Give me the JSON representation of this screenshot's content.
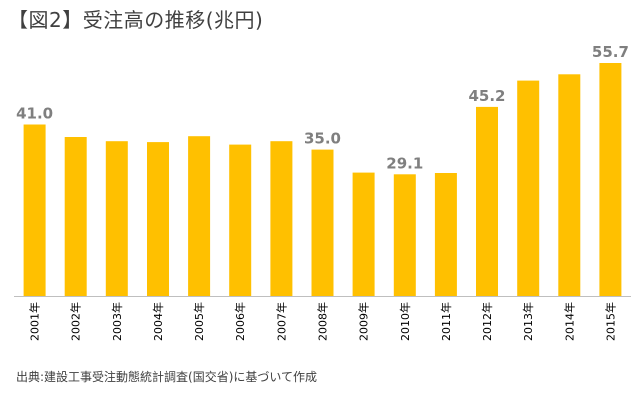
{
  "title": "【図2】受注高の推移(兆円)",
  "source": "出典:建設工事受注動態統計調査(国交省)に基づいて作成",
  "colors": {
    "bar": "#FFC000",
    "axis": "#BFBFBF",
    "value_label": "#7F7F7F",
    "tick_label": "#000000"
  },
  "chart_data": {
    "type": "bar",
    "title": "【図2】受注高の推移(兆円)",
    "unit": "兆円",
    "categories": [
      "2001年",
      "2002年",
      "2003年",
      "2004年",
      "2005年",
      "2006年",
      "2007年",
      "2008年",
      "2009年",
      "2010年",
      "2011年",
      "2012年",
      "2013年",
      "2014年",
      "2015年"
    ],
    "values": [
      41.0,
      38.0,
      37.0,
      36.8,
      38.2,
      36.2,
      37.0,
      35.0,
      29.5,
      29.1,
      29.4,
      45.2,
      51.5,
      53.0,
      55.7
    ],
    "labeled_values": {
      "2001年": "41.0",
      "2008年": "35.0",
      "2010年": "29.1",
      "2012年": "45.2",
      "2015年": "55.7"
    },
    "ylim": [
      0,
      60
    ],
    "grid": false,
    "legend": false,
    "xlabel": "",
    "ylabel": ""
  }
}
